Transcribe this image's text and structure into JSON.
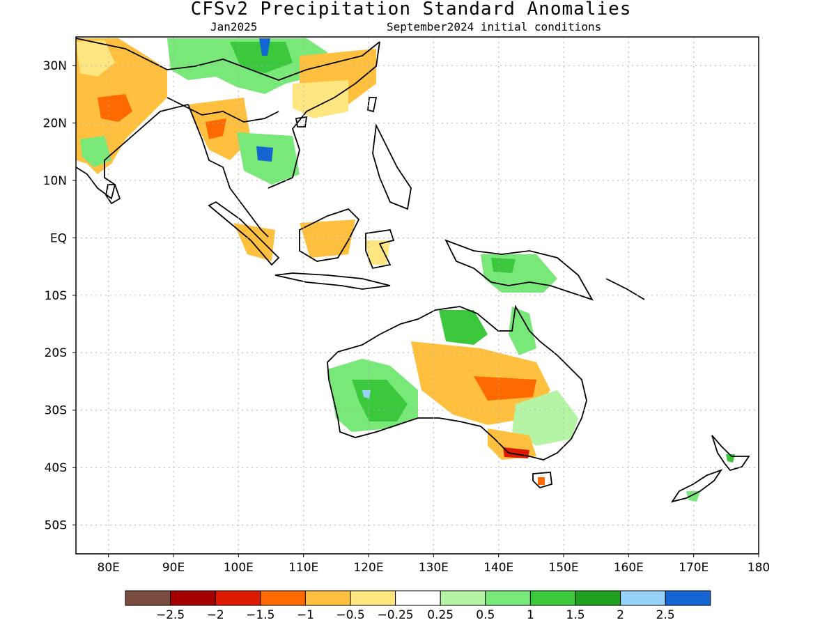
{
  "header": {
    "title": "CFSv2 Precipitation Standard Anomalies",
    "valid_month": "Jan2025",
    "initial_conditions": "September2024 initial conditions"
  },
  "map": {
    "lon_range": [
      75,
      180
    ],
    "lat_range": [
      -55,
      35
    ],
    "x_ticks": [
      {
        "lon": 80,
        "label": "80E"
      },
      {
        "lon": 90,
        "label": "90E"
      },
      {
        "lon": 100,
        "label": "100E"
      },
      {
        "lon": 110,
        "label": "110E"
      },
      {
        "lon": 120,
        "label": "120E"
      },
      {
        "lon": 130,
        "label": "130E"
      },
      {
        "lon": 140,
        "label": "140E"
      },
      {
        "lon": 150,
        "label": "150E"
      },
      {
        "lon": 160,
        "label": "160E"
      },
      {
        "lon": 170,
        "label": "170E"
      },
      {
        "lon": 180,
        "label": "180"
      }
    ],
    "y_ticks": [
      {
        "lat": 30,
        "label": "30N"
      },
      {
        "lat": 20,
        "label": "20N"
      },
      {
        "lat": 10,
        "label": "10N"
      },
      {
        "lat": 0,
        "label": "EQ"
      },
      {
        "lat": -10,
        "label": "10S"
      },
      {
        "lat": -20,
        "label": "20S"
      },
      {
        "lat": -30,
        "label": "30S"
      },
      {
        "lat": -40,
        "label": "40S"
      },
      {
        "lat": -50,
        "label": "50S"
      }
    ]
  },
  "colorbar": {
    "colors": [
      "#7a4b3f",
      "#a40000",
      "#dd1a00",
      "#ff6a00",
      "#ffbf3f",
      "#ffe680",
      "#ffffff",
      "#b4f4a4",
      "#78e878",
      "#3cc83c",
      "#1ea01e",
      "#96d2fa",
      "#1464d2"
    ],
    "labels": [
      "−2.5",
      "−2",
      "−1.5",
      "−1",
      "−0.5",
      "−0.25",
      "0.25",
      "0.5",
      "1",
      "1.5",
      "2",
      "2.5"
    ]
  },
  "colors": {
    "dry_strong": "#dd1a00",
    "dry_moderate": "#ff6a00",
    "dry_weak": "#ffbf3f",
    "dry_slight": "#ffe680",
    "wet_slight": "#b4f4a4",
    "wet_weak": "#78e878",
    "wet_moderate": "#3cc83c",
    "wet_strong": "#1ea01e",
    "wet_extreme": "#96d2fa",
    "wet_max": "#1464d2"
  }
}
